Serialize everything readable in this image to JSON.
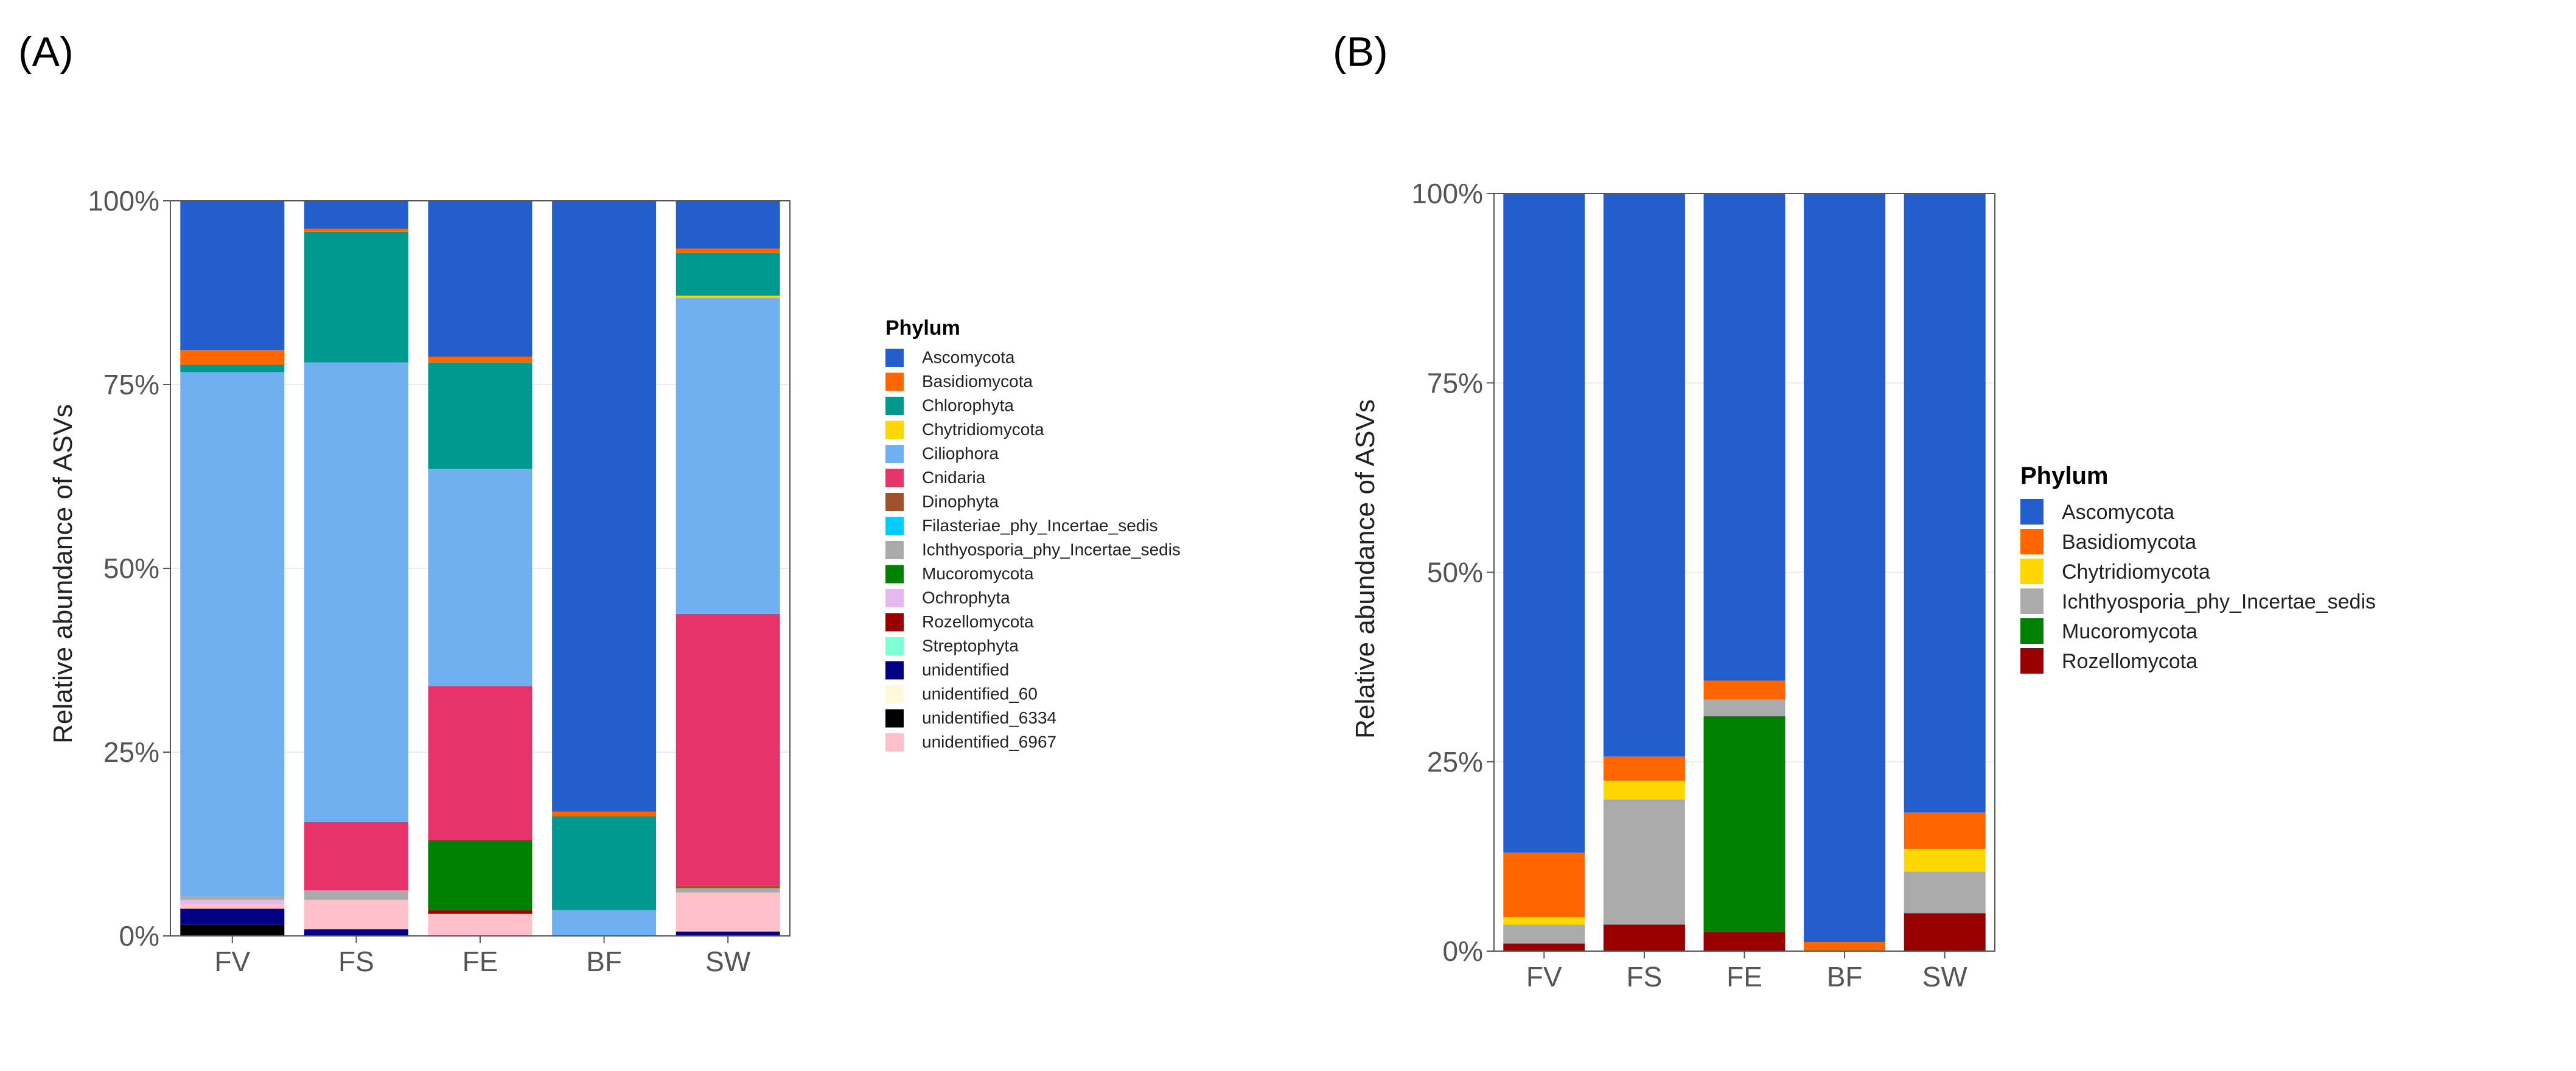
{
  "chart_data": [
    {
      "panel_label": "(A)",
      "type": "bar",
      "stacked": true,
      "ylabel": "Relative abundance of ASVs",
      "xlabel": "",
      "ylim": [
        0,
        1
      ],
      "yticks": [
        0,
        0.25,
        0.5,
        0.75,
        1
      ],
      "ytick_labels": [
        "0%",
        "25%",
        "50%",
        "75%",
        "100%"
      ],
      "categories": [
        "FV",
        "FS",
        "FE",
        "BF",
        "SW"
      ],
      "legend_title": "Phylum",
      "legend_position": "right",
      "series": [
        {
          "name": "unidentified_6334",
          "color": "#000000",
          "values": [
            0.015,
            0.0,
            0.0,
            0.0,
            0.0
          ]
        },
        {
          "name": "unidentified",
          "color": "#000080",
          "values": [
            0.022,
            0.009,
            0.0,
            0.0,
            0.006
          ]
        },
        {
          "name": "unidentified_6967",
          "color": "#FFC0CB",
          "values": [
            0.006,
            0.04,
            0.03,
            0.0,
            0.053
          ]
        },
        {
          "name": "unidentified_60",
          "color": "#FFF8DC",
          "values": [
            0.0,
            0.0,
            0.0,
            0.0,
            0.0
          ]
        },
        {
          "name": "Rozellomycota",
          "color": "#990000",
          "values": [
            0.0,
            0.0,
            0.005,
            0.0,
            0.0
          ]
        },
        {
          "name": "Ochrophyta",
          "color": "#E6B8F0",
          "values": [
            0.006,
            0.0,
            0.0,
            0.0,
            0.0
          ]
        },
        {
          "name": "Ichthyosporia_phy_Incertae_sedis",
          "color": "#AAAAAA",
          "values": [
            0.005,
            0.013,
            0.0,
            0.0,
            0.006
          ]
        },
        {
          "name": "Dinophyta",
          "color": "#A0522D",
          "values": [
            0.0,
            0.0,
            0.0,
            0.0,
            0.003
          ]
        },
        {
          "name": "Mucoromycota",
          "color": "#008000",
          "values": [
            0.0,
            0.0,
            0.095,
            0.0,
            0.0
          ]
        },
        {
          "name": "Filasteriae_phy_Incertae_sedis",
          "color": "#00CCFF",
          "values": [
            0.0,
            0.0,
            0.0,
            0.0,
            0.0
          ]
        },
        {
          "name": "Cnidaria",
          "color": "#E8326A",
          "values": [
            0.0,
            0.093,
            0.21,
            0.0,
            0.37
          ]
        },
        {
          "name": "Ciliophora",
          "color": "#70B0F0",
          "values": [
            0.713,
            0.625,
            0.295,
            0.035,
            0.43
          ]
        },
        {
          "name": "Streptophyta",
          "color": "#7FFFD4",
          "values": [
            0.0,
            0.0,
            0.0,
            0.0,
            0.0
          ]
        },
        {
          "name": "Chytridiomycota",
          "color": "#FFD700",
          "values": [
            0.0,
            0.0,
            0.0,
            0.0,
            0.003
          ]
        },
        {
          "name": "Chlorophyta",
          "color": "#009990",
          "values": [
            0.01,
            0.178,
            0.145,
            0.128,
            0.058
          ]
        },
        {
          "name": "Basidiomycota",
          "color": "#FF6600",
          "values": [
            0.02,
            0.004,
            0.008,
            0.006,
            0.006
          ]
        },
        {
          "name": "Ascomycota",
          "color": "#235ECC",
          "values": [
            0.203,
            0.038,
            0.212,
            0.831,
            0.065
          ]
        }
      ],
      "legend_entries": [
        {
          "name": "Ascomycota",
          "color": "#235ECC"
        },
        {
          "name": "Basidiomycota",
          "color": "#FF6600"
        },
        {
          "name": "Chlorophyta",
          "color": "#009990"
        },
        {
          "name": "Chytridiomycota",
          "color": "#FFD700"
        },
        {
          "name": "Ciliophora",
          "color": "#70B0F0"
        },
        {
          "name": "Cnidaria",
          "color": "#E8326A"
        },
        {
          "name": "Dinophyta",
          "color": "#A0522D"
        },
        {
          "name": "Filasteriae_phy_Incertae_sedis",
          "color": "#00CCFF"
        },
        {
          "name": "Ichthyosporia_phy_Incertae_sedis",
          "color": "#AAAAAA"
        },
        {
          "name": "Mucoromycota",
          "color": "#008000"
        },
        {
          "name": "Ochrophyta",
          "color": "#E6B8F0"
        },
        {
          "name": "Rozellomycota",
          "color": "#990000"
        },
        {
          "name": "Streptophyta",
          "color": "#7FFFD4"
        },
        {
          "name": "unidentified",
          "color": "#000080"
        },
        {
          "name": "unidentified_60",
          "color": "#FFF8DC"
        },
        {
          "name": "unidentified_6334",
          "color": "#000000"
        },
        {
          "name": "unidentified_6967",
          "color": "#FFC0CB"
        }
      ]
    },
    {
      "panel_label": "(B)",
      "type": "bar",
      "stacked": true,
      "ylabel": "Relative abundance of ASVs",
      "xlabel": "",
      "ylim": [
        0,
        1
      ],
      "yticks": [
        0,
        0.25,
        0.5,
        0.75,
        1
      ],
      "ytick_labels": [
        "0%",
        "25%",
        "50%",
        "75%",
        "100%"
      ],
      "categories": [
        "FV",
        "FS",
        "FE",
        "BF",
        "SW"
      ],
      "legend_title": "Phylum",
      "legend_position": "right",
      "series": [
        {
          "name": "Rozellomycota",
          "color": "#990000",
          "values": [
            0.01,
            0.035,
            0.025,
            0.0,
            0.05
          ]
        },
        {
          "name": "Mucoromycota",
          "color": "#008000",
          "values": [
            0.0,
            0.0,
            0.285,
            0.0,
            0.0
          ]
        },
        {
          "name": "Ichthyosporia_phy_Incertae_sedis",
          "color": "#AAAAAA",
          "values": [
            0.025,
            0.165,
            0.022,
            0.0,
            0.055
          ]
        },
        {
          "name": "Chytridiomycota",
          "color": "#FFD700",
          "values": [
            0.01,
            0.025,
            0.0,
            0.0,
            0.03
          ]
        },
        {
          "name": "Basidiomycota",
          "color": "#FF6600",
          "values": [
            0.085,
            0.032,
            0.025,
            0.012,
            0.048
          ]
        },
        {
          "name": "Ascomycota",
          "color": "#235ECC",
          "values": [
            0.87,
            0.743,
            0.643,
            0.988,
            0.817
          ]
        }
      ],
      "legend_entries": [
        {
          "name": "Ascomycota",
          "color": "#235ECC"
        },
        {
          "name": "Basidiomycota",
          "color": "#FF6600"
        },
        {
          "name": "Chytridiomycota",
          "color": "#FFD700"
        },
        {
          "name": "Ichthyosporia_phy_Incertae_sedis",
          "color": "#AAAAAA"
        },
        {
          "name": "Mucoromycota",
          "color": "#008000"
        },
        {
          "name": "Rozellomycota",
          "color": "#990000"
        }
      ]
    }
  ]
}
